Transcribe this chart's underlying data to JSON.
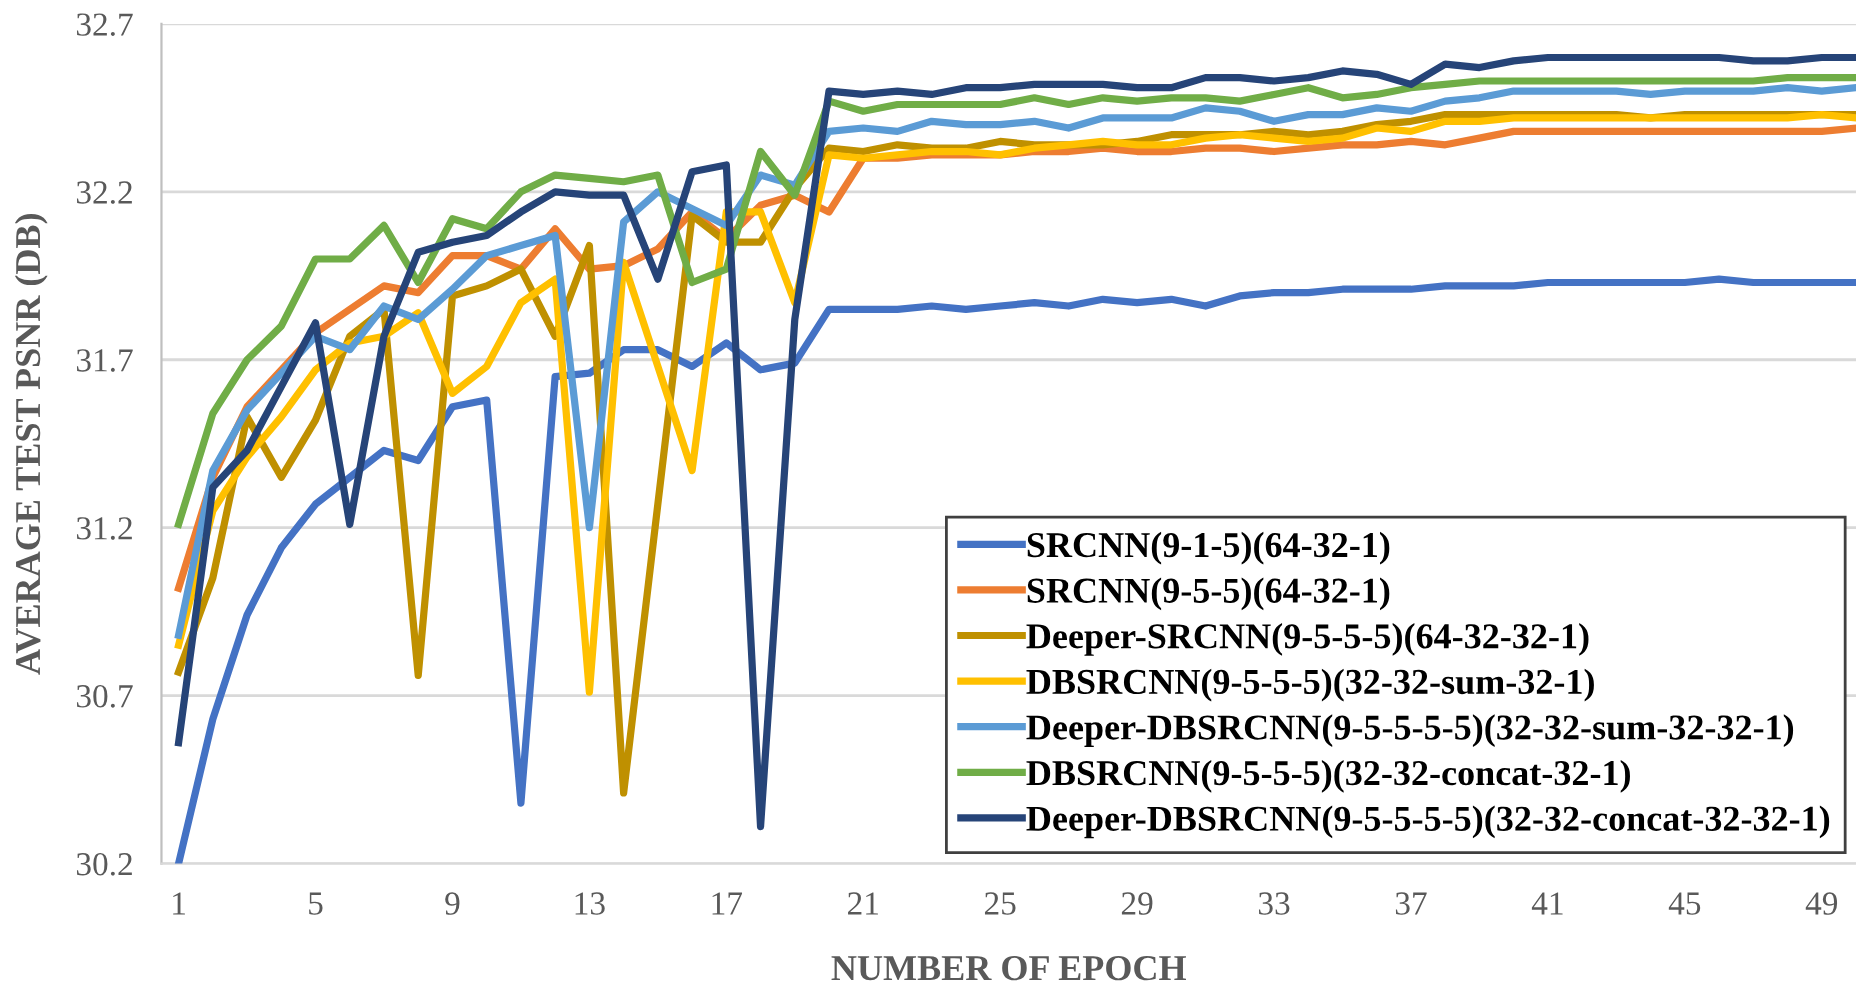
{
  "chart_data": {
    "type": "line",
    "xlabel": "NUMBER OF EPOCH",
    "ylabel": "AVERAGE TEST PSNR (DB)",
    "categories": [
      "1",
      null,
      null,
      null,
      "5",
      null,
      null,
      null,
      "9",
      null,
      null,
      null,
      "13",
      null,
      null,
      null,
      "17",
      null,
      null,
      null,
      "21",
      null,
      null,
      null,
      "25",
      null,
      null,
      null,
      "29",
      null,
      null,
      null,
      "33",
      null,
      null,
      null,
      "37",
      null,
      null,
      null,
      "41",
      null,
      null,
      null,
      "45",
      null,
      null,
      null,
      "49",
      null
    ],
    "ylim": [
      30.2,
      32.7
    ],
    "yticks": [
      30.2,
      30.7,
      31.2,
      31.7,
      32.2,
      32.7
    ],
    "grid": "y",
    "legend": "bottom right",
    "marker": "none",
    "line_style": "solid",
    "series": [
      {
        "name": "SRCNN(9-1-5)(64-32-1)",
        "color": "#4472c4",
        "values": [
          30.2,
          30.63,
          30.94,
          31.14,
          31.27,
          31.35,
          31.43,
          31.4,
          31.56,
          31.58,
          30.38,
          31.65,
          31.66,
          31.73,
          31.73,
          31.68,
          31.75,
          31.67,
          31.69,
          31.85,
          31.85,
          31.85,
          31.86,
          31.85,
          31.86,
          31.87,
          31.86,
          31.88,
          31.87,
          31.88,
          31.86,
          31.89,
          31.9,
          31.9,
          31.91,
          31.91,
          31.91,
          31.92,
          31.92,
          31.92,
          31.93,
          31.93,
          31.93,
          31.93,
          31.93,
          31.94,
          31.93,
          31.93,
          31.93,
          31.93
        ]
      },
      {
        "name": "SRCNN(9-5-5)(64-32-1)",
        "color": "#ed7d31",
        "values": [
          31.02,
          31.35,
          31.56,
          31.67,
          31.78,
          31.85,
          31.92,
          31.9,
          32.01,
          32.01,
          31.97,
          32.09,
          31.97,
          31.98,
          32.03,
          32.14,
          32.06,
          32.16,
          32.19,
          32.14,
          32.3,
          32.3,
          32.31,
          32.31,
          32.31,
          32.32,
          32.32,
          32.33,
          32.32,
          32.32,
          32.33,
          32.33,
          32.32,
          32.33,
          32.34,
          32.34,
          32.35,
          32.34,
          32.36,
          32.38,
          32.38,
          32.38,
          32.38,
          32.38,
          32.38,
          32.38,
          32.38,
          32.38,
          32.38,
          32.39
        ]
      },
      {
        "name": "Deeper-SRCNN(9-5-5-5)(64-32-32-1)",
        "color": "#bf9000",
        "values": [
          30.77,
          31.05,
          31.53,
          31.35,
          31.52,
          31.77,
          31.85,
          30.76,
          31.89,
          31.92,
          31.97,
          31.77,
          32.04,
          30.41,
          31.27,
          32.13,
          32.05,
          32.05,
          32.21,
          32.33,
          32.32,
          32.34,
          32.33,
          32.33,
          32.35,
          32.34,
          32.34,
          32.34,
          32.35,
          32.37,
          32.37,
          32.37,
          32.38,
          32.37,
          32.38,
          32.4,
          32.41,
          32.43,
          32.43,
          32.43,
          32.43,
          32.43,
          32.43,
          32.42,
          32.43,
          32.43,
          32.43,
          32.43,
          32.43,
          32.43
        ]
      },
      {
        "name": "DBSRCNN(9-5-5-5)(32-32-sum-32-1)",
        "color": "#ffc000",
        "values": [
          30.85,
          31.25,
          31.41,
          31.53,
          31.67,
          31.75,
          31.77,
          31.84,
          31.6,
          31.68,
          31.87,
          31.94,
          30.71,
          31.99,
          31.68,
          31.37,
          32.14,
          32.14,
          31.87,
          32.31,
          32.3,
          32.31,
          32.32,
          32.32,
          32.31,
          32.33,
          32.34,
          32.35,
          32.34,
          32.34,
          32.36,
          32.37,
          32.36,
          32.35,
          32.36,
          32.39,
          32.38,
          32.41,
          32.41,
          32.42,
          32.42,
          32.42,
          32.42,
          32.42,
          32.42,
          32.42,
          32.42,
          32.42,
          32.43,
          32.42
        ]
      },
      {
        "name": "Deeper-DBSRCNN(9-5-5-5-5)(32-32-sum-32-32-1)",
        "color": "#5b9bd5",
        "values": [
          30.88,
          31.37,
          31.55,
          31.66,
          31.77,
          31.73,
          31.86,
          31.82,
          31.91,
          32.01,
          32.04,
          32.07,
          31.2,
          32.11,
          32.2,
          32.15,
          32.1,
          32.25,
          32.22,
          32.38,
          32.39,
          32.38,
          32.41,
          32.4,
          32.4,
          32.41,
          32.39,
          32.42,
          32.42,
          32.42,
          32.45,
          32.44,
          32.41,
          32.43,
          32.43,
          32.45,
          32.44,
          32.47,
          32.48,
          32.5,
          32.5,
          32.5,
          32.5,
          32.49,
          32.5,
          32.5,
          32.5,
          32.51,
          32.5,
          32.51
        ]
      },
      {
        "name": "DBSRCNN(9-5-5-5)(32-32-concat-32-1)",
        "color": "#70ad47",
        "values": [
          31.21,
          31.54,
          31.7,
          31.8,
          32.0,
          32.0,
          32.1,
          31.93,
          32.12,
          32.09,
          32.2,
          32.25,
          32.24,
          32.23,
          32.25,
          31.93,
          31.97,
          32.32,
          32.19,
          32.47,
          32.44,
          32.46,
          32.46,
          32.46,
          32.46,
          32.48,
          32.46,
          32.48,
          32.47,
          32.48,
          32.48,
          32.47,
          32.49,
          32.51,
          32.48,
          32.49,
          32.51,
          32.52,
          32.53,
          32.53,
          32.53,
          32.53,
          32.53,
          32.53,
          32.53,
          32.53,
          32.53,
          32.54,
          32.54,
          32.54
        ]
      },
      {
        "name": "Deeper-DBSRCNN(9-5-5-5-5)(32-32-concat-32-32-1)",
        "color": "#264478",
        "values": [
          30.56,
          31.32,
          31.43,
          31.62,
          31.81,
          31.21,
          31.77,
          32.02,
          32.05,
          32.07,
          32.14,
          32.2,
          32.19,
          32.19,
          31.94,
          32.26,
          32.28,
          30.31,
          31.82,
          32.5,
          32.49,
          32.5,
          32.49,
          32.51,
          32.51,
          32.52,
          32.52,
          32.52,
          32.51,
          32.51,
          32.54,
          32.54,
          32.53,
          32.54,
          32.56,
          32.55,
          32.52,
          32.58,
          32.57,
          32.59,
          32.6,
          32.6,
          32.6,
          32.6,
          32.6,
          32.6,
          32.59,
          32.59,
          32.6,
          32.6
        ]
      }
    ]
  }
}
